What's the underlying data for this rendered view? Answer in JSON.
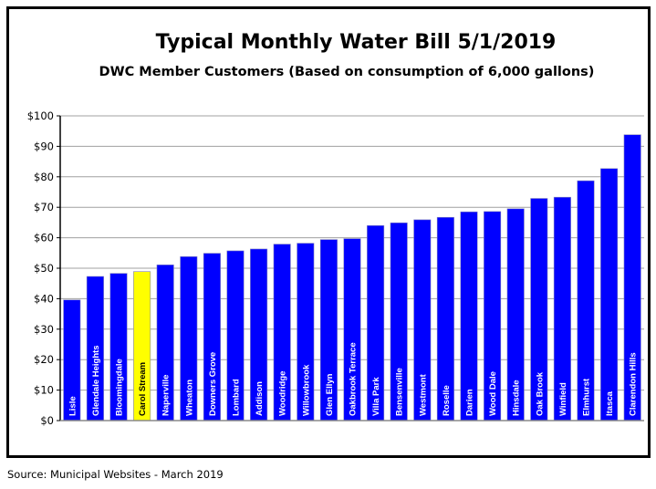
{
  "chart_data": {
    "type": "bar",
    "title": "Typical Monthly Water Bill 5/1/2019",
    "subtitle": "DWC Member Customers (Based on consumption of 6,000 gallons)",
    "categories": [
      "Lisle",
      "Glendale Heights",
      "Bloomingdale",
      "Carol Stream",
      "Naperville",
      "Wheaton",
      "Downers Grove",
      "Lombard",
      "Addison",
      "Woodridge",
      "Willowbrook",
      "Glen Ellyn",
      "Oakbrook Terrace",
      "Villa Park",
      "Bensenville",
      "Westmont",
      "Roselle",
      "Darien",
      "Wood Dale",
      "Hinsdale",
      "Oak Brook",
      "Winfield",
      "Elmhurst",
      "Itasca",
      "Clarendon Hills"
    ],
    "values": [
      39.6,
      47.3,
      48.3,
      48.9,
      51.1,
      53.8,
      54.9,
      55.7,
      56.3,
      57.9,
      58.2,
      59.4,
      59.7,
      64.0,
      64.9,
      65.9,
      66.7,
      68.5,
      68.6,
      69.5,
      72.9,
      73.3,
      78.7,
      82.7,
      93.8
    ],
    "highlight": "Carol Stream",
    "colors": {
      "bar": "#0000ff",
      "highlight": "#ffff00",
      "grid": "#a0a0a0"
    },
    "ylim": [
      0,
      100
    ],
    "yticks": [
      "$0",
      "$10",
      "$20",
      "$30",
      "$40",
      "$50",
      "$60",
      "$70",
      "$80",
      "$90",
      "$100"
    ],
    "grid": true,
    "legend": "none"
  },
  "source": "Source:  Municipal Websites - March 2019"
}
